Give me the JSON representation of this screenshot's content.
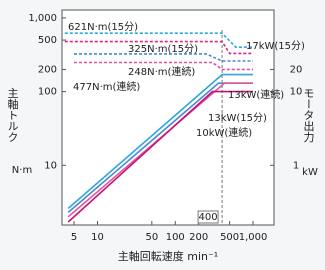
{
  "chart_data": {
    "type": "line",
    "y_label": "主軸トルク",
    "y_unit": "N·m",
    "y2_label": "モータ出力",
    "y2_unit": "kW",
    "x_label": "主軸回転速度 min⁻¹",
    "log_x": true,
    "log_y": true,
    "xlim": [
      3.5,
      1860
    ],
    "ylim": [
      1.55,
      1280
    ],
    "y2lim": [
      0.155,
      128
    ],
    "xticks": [
      5,
      10,
      50,
      100,
      200,
      500,
      {
        "value": 1000,
        "label": "1,000"
      }
    ],
    "yticks": [
      10,
      100,
      200,
      500,
      {
        "value": 1000,
        "label": "1,000"
      }
    ],
    "y2ticks": [
      1,
      10,
      20
    ],
    "reference_x": {
      "value": 400,
      "label": "400"
    },
    "series": [
      {
        "color": "#2aa8e0",
        "dash": true,
        "x": [
          3.8,
          400,
          600,
          1000
        ],
        "values": [
          621,
          621,
          400,
          400
        ]
      },
      {
        "color": "#e0238a",
        "dash": true,
        "x": [
          3.8,
          400,
          500,
          1000
        ],
        "values": [
          477,
          477,
          330,
          330
        ]
      },
      {
        "color": "#4a86d8",
        "dash": true,
        "x": [
          5,
          250,
          400,
          1000
        ],
        "values": [
          325,
          325,
          260,
          260
        ]
      },
      {
        "color": "#e0559a",
        "dash": true,
        "x": [
          5,
          300,
          400,
          1000
        ],
        "values": [
          248,
          248,
          200,
          200
        ]
      },
      {
        "color": "#2aa8e0",
        "dash": false,
        "axis": "y2",
        "x": [
          4.2,
          400,
          1000
        ],
        "values": [
          0.26,
          17,
          17
        ]
      },
      {
        "color": "#4a86d8",
        "dash": false,
        "axis": "y2",
        "x": [
          4.2,
          360,
          1000
        ],
        "values": [
          0.23,
          13,
          13
        ]
      },
      {
        "color": "#e0559a",
        "dash": false,
        "axis": "y2",
        "x": [
          4.2,
          430,
          1000
        ],
        "values": [
          0.2,
          13,
          13
        ]
      },
      {
        "color": "#c8107a",
        "dash": false,
        "axis": "y2",
        "x": [
          4.2,
          300,
          1000
        ],
        "values": [
          0.17,
          10,
          10
        ]
      }
    ],
    "annotations": [
      "621N·m(15分)",
      "325N·m(15分)",
      "248N·m(連続)",
      "477N·m(連続)",
      "17kW(15分)",
      "13kW(連続)",
      "13kW(15分)",
      "10kW(連続)"
    ]
  }
}
